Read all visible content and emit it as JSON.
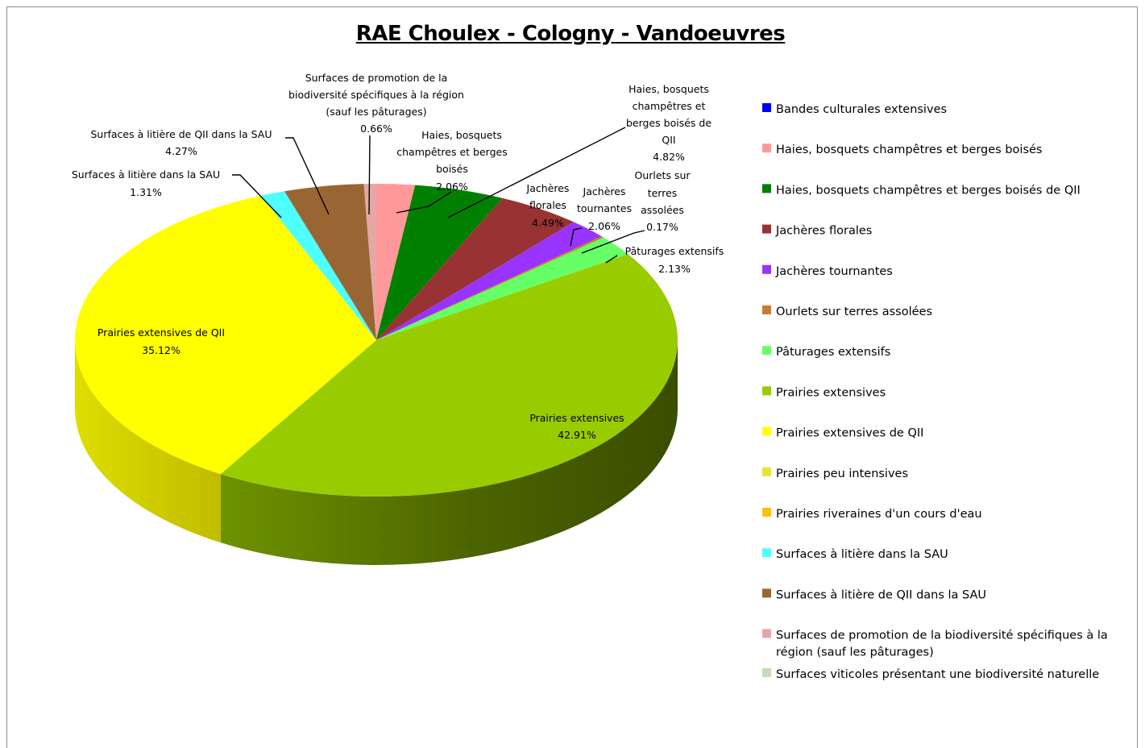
{
  "chart_data": {
    "type": "pie",
    "title": "RAE Choulex - Cologny - Vandoeuvres",
    "slices": [
      {
        "name": "Bandes culturales extensives",
        "value": 0.0,
        "label": "",
        "color": "#0000ff"
      },
      {
        "name": "Haies, bosquets champêtres et berges boisés",
        "value": 2.06,
        "label": "Haies, bosquets champêtres et berges boisés 2.06%",
        "color": "#ff9999"
      },
      {
        "name": "Haies, bosquets champêtres et berges boisés de QII",
        "value": 4.82,
        "label": "Haies, bosquets champêtres et berges boisés de QII 4.82%",
        "color": "#008000"
      },
      {
        "name": "Jachères florales",
        "value": 4.49,
        "label": "Jachères florales 4.49%",
        "color": "#993333"
      },
      {
        "name": "Jachères tournantes",
        "value": 2.06,
        "label": "Jachères tournantes 2.06%",
        "color": "#9933ff"
      },
      {
        "name": "Ourlets sur terres assolées",
        "value": 0.17,
        "label": "Ourlets sur terres assolées 0.17%",
        "color": "#cc7a33"
      },
      {
        "name": "Pâturages extensifs",
        "value": 2.13,
        "label": "Pâturages extensifs 2.13%",
        "color": "#66ff66"
      },
      {
        "name": "Prairies extensives",
        "value": 42.91,
        "label": "Prairies extensives 42.91%",
        "color": "#99cc00"
      },
      {
        "name": "Prairies extensives de QII",
        "value": 35.12,
        "label": "Prairies extensives de QII 35.12%",
        "color": "#ffff00"
      },
      {
        "name": "Prairies peu intensives",
        "value": 0.0,
        "label": "",
        "color": "#e6e632"
      },
      {
        "name": "Prairies riveraines d'un cours d'eau",
        "value": 0.0,
        "label": "",
        "color": "#ffc000"
      },
      {
        "name": "Surfaces à litière dans la SAU",
        "value": 1.31,
        "label": "Surfaces à litière dans la SAU 1.31%",
        "color": "#4dffff"
      },
      {
        "name": "Surfaces à litière de QII dans la SAU",
        "value": 4.27,
        "label": "Surfaces à litière de QII dans la SAU 4.27%",
        "color": "#996633"
      },
      {
        "name": "Surfaces de promotion de la biodiversité spécifiques à la région (sauf les pâturages)",
        "value": 0.66,
        "label": "Surfaces de promotion de la biodiversité spécifiques à la région (sauf les pâturages) 0.66%",
        "color": "#e6a6a6"
      },
      {
        "name": "Surfaces viticoles présentant une biodiversité naturelle",
        "value": 0.0,
        "label": "",
        "color": "#c4dcb4"
      }
    ],
    "legend_position": "right"
  }
}
